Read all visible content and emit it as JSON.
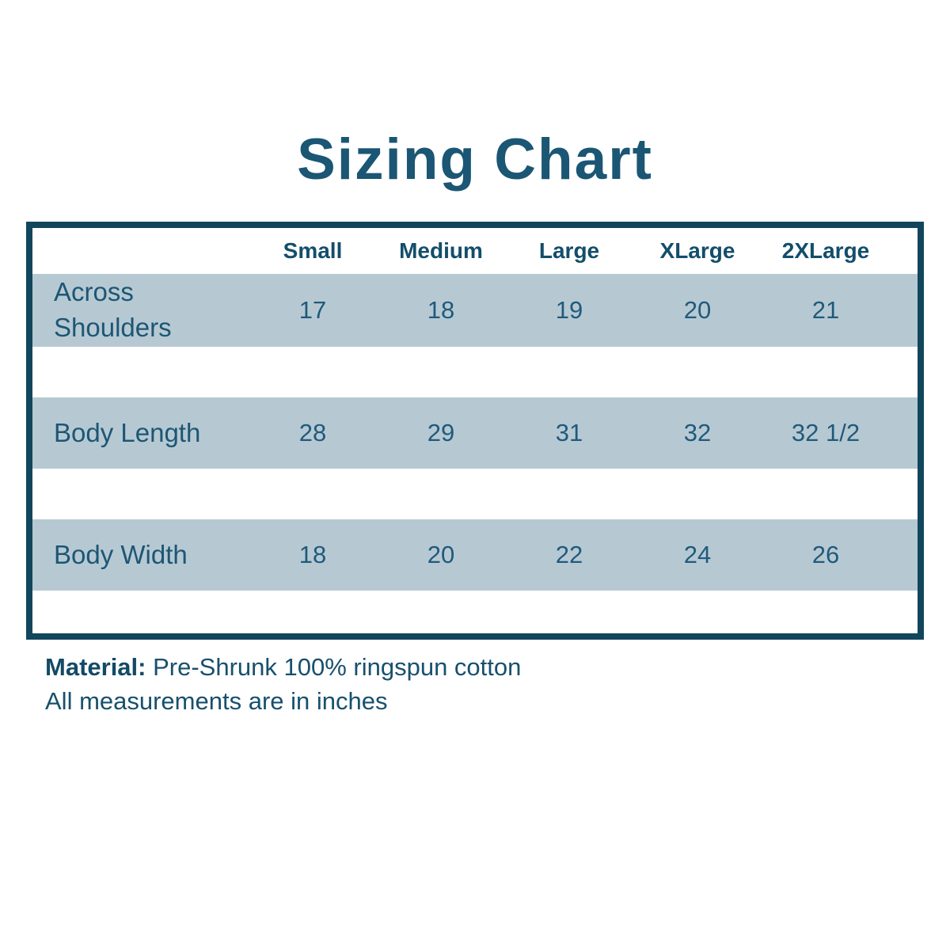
{
  "title": "Sizing Chart",
  "chart_data": {
    "type": "table",
    "title": "Sizing Chart",
    "columns": [
      "Small",
      "Medium",
      "Large",
      "XLarge",
      "2XLarge"
    ],
    "rows": [
      {
        "label": "Across Shoulders",
        "values": [
          "17",
          "18",
          "19",
          "20",
          "21"
        ]
      },
      {
        "label": "Body Length",
        "values": [
          "28",
          "29",
          "31",
          "32",
          "32 1/2"
        ]
      },
      {
        "label": "Body Width",
        "values": [
          "18",
          "20",
          "22",
          "24",
          "26"
        ]
      }
    ],
    "footnotes": [
      "Material: Pre-Shrunk 100% ringspun cotton",
      "All measurements are in inches"
    ],
    "units": "inches"
  },
  "footer": {
    "material_label": "Material:",
    "material_value": "Pre-Shrunk 100% ringspun cotton",
    "note": "All measurements are in inches"
  },
  "colors": {
    "border": "#11465c",
    "text": "#1b5674",
    "row_shade": "#b6c9d3",
    "background": "#ffffff"
  }
}
